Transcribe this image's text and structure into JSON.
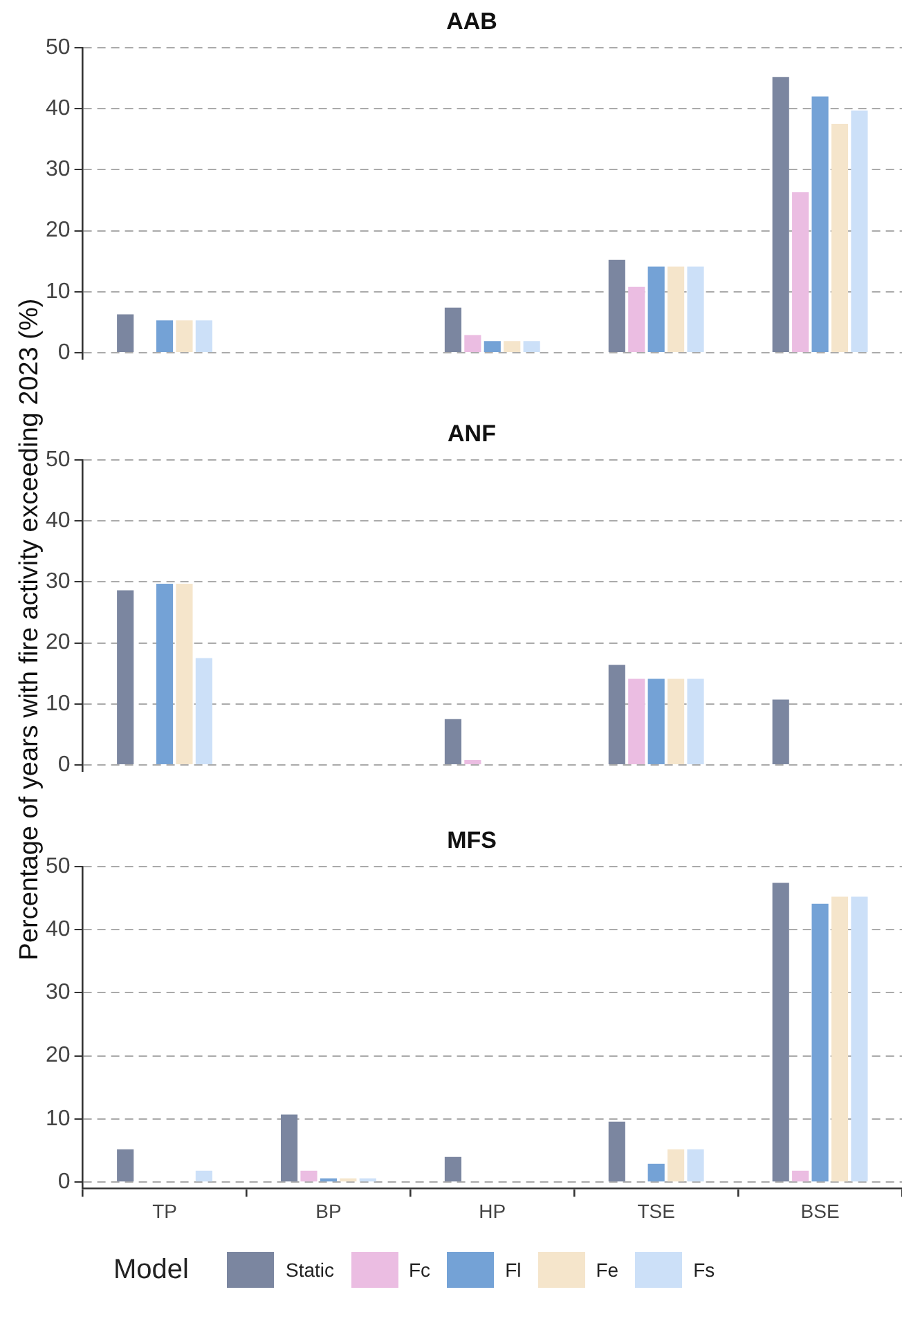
{
  "chart_data": [
    {
      "type": "bar",
      "title": "AAB",
      "categories": [
        null,
        null,
        null,
        null,
        null
      ],
      "series": [
        {
          "color": "#7b86a0",
          "values": [
            6.3,
            0,
            7.4,
            15.2,
            45.2
          ]
        },
        {
          "color": "#ebbde2",
          "values": [
            0,
            0,
            2.9,
            10.8,
            26.3
          ]
        },
        {
          "color": "#74a2d6",
          "values": [
            5.3,
            0,
            1.9,
            14.1,
            42
          ]
        },
        {
          "color": "#f5e5cb",
          "values": [
            5.3,
            0,
            1.9,
            14.1,
            37.5
          ]
        },
        {
          "color": "#cce0f8",
          "values": [
            5.3,
            0,
            1.9,
            14.1,
            39.7
          ]
        }
      ],
      "ylim": [
        -1,
        50
      ],
      "yticks": [
        0,
        10,
        20,
        30,
        40,
        50
      ],
      "grid": "y",
      "tick_labels": "y"
    },
    {
      "type": "bar",
      "title": "ANF",
      "ylabel": "Percentage of years with fire activity exceeding 2023 (%)",
      "categories": [
        null,
        null,
        null,
        null,
        null
      ],
      "series": [
        {
          "color": "#7b86a0",
          "values": [
            28.6,
            0,
            7.5,
            16.4,
            10.7
          ]
        },
        {
          "color": "#ebbde2",
          "values": [
            0,
            0,
            0.8,
            14.1,
            0
          ]
        },
        {
          "color": "#74a2d6",
          "values": [
            29.7,
            0,
            0,
            14.1,
            0
          ]
        },
        {
          "color": "#f5e5cb",
          "values": [
            29.7,
            0,
            0,
            14.1,
            0
          ]
        },
        {
          "color": "#cce0f8",
          "values": [
            17.5,
            0,
            0,
            14.1,
            0
          ]
        }
      ],
      "ylim": [
        -1,
        50
      ],
      "yticks": [
        0,
        10,
        20,
        30,
        40,
        50
      ],
      "grid": "y",
      "tick_labels": "y"
    },
    {
      "type": "bar",
      "title": "MFS",
      "categories": [
        "TP",
        "BP",
        "HP",
        "TSE",
        "BSE"
      ],
      "series": [
        {
          "name": "Static",
          "color": "#7b86a0",
          "values": [
            5.2,
            10.7,
            4.0,
            9.6,
            47.4
          ]
        },
        {
          "name": "Fc",
          "color": "#ebbde2",
          "values": [
            0,
            1.8,
            0,
            0,
            1.8
          ]
        },
        {
          "name": "Fl",
          "color": "#74a2d6",
          "values": [
            0,
            0.6,
            0,
            2.9,
            44.1
          ]
        },
        {
          "name": "Fe",
          "color": "#f5e5cb",
          "values": [
            0,
            0.6,
            0,
            5.2,
            45.2
          ]
        },
        {
          "name": "Fs",
          "color": "#cce0f8",
          "values": [
            1.8,
            0.6,
            0,
            5.2,
            45.2
          ]
        }
      ],
      "ylim": [
        -1,
        50
      ],
      "yticks": [
        0,
        10,
        20,
        30,
        40,
        50
      ],
      "grid": "y",
      "legend": "bottom",
      "legend_title": "Model"
    }
  ]
}
